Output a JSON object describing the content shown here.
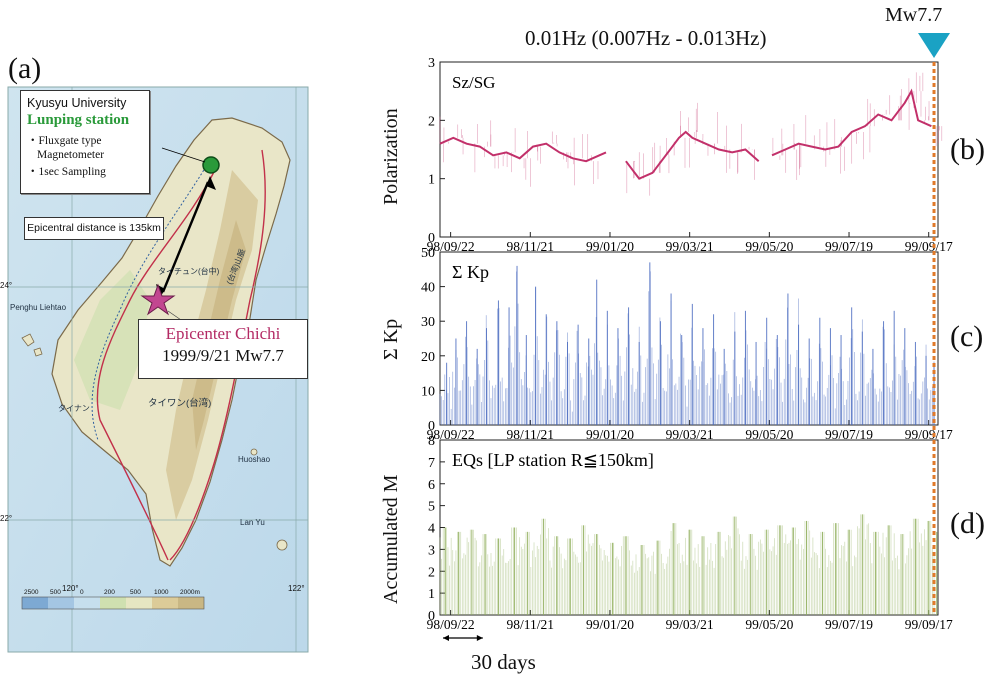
{
  "figure": {
    "panel_labels": [
      "(a)",
      "(b)",
      "(c)",
      "(d)"
    ],
    "top_title": "0.01Hz (0.007Hz - 0.013Hz)",
    "event_marker": "Mw7.7",
    "scale_bar": "30 days",
    "accent_colors": {
      "polarization": "#c2306a",
      "kp": "#4a6bc0",
      "eq": "#8fae5a",
      "event_line": "#e07a2a",
      "triangle": "#1aa2c4"
    }
  },
  "map": {
    "station_box": {
      "org": "Kyusyu University",
      "station": "Lunping station",
      "bullet1": "・Fluxgate type",
      "bullet1b": "Magnetometer",
      "bullet2": "・1sec Sampling"
    },
    "distance_note": "Epicentral distance is 135km",
    "epicenter": {
      "name": "Epicenter Chichi",
      "event": "1999/9/21 Mw7.7"
    },
    "lat_labels": [
      "24°",
      "22°"
    ],
    "lon_labels": [
      "120°",
      "122°"
    ],
    "place_names": [
      "タイワン(台湾)",
      "Penghu Liehtao",
      "タイナン",
      "タイチュン(台中)",
      "Lan Yu",
      "Huoshao",
      "(台湾)山脈"
    ],
    "legend_values": [
      "2500",
      "500",
      "0",
      "200",
      "500",
      "1000",
      "2000m"
    ]
  },
  "chart_data": [
    {
      "type": "line",
      "panel": "(b)",
      "ylabel": "Polarization",
      "annotation": "Sz/SG",
      "ylim": [
        0,
        3
      ],
      "yticks": [
        0,
        1,
        2,
        3
      ],
      "xticklabels": [
        "98/09/22",
        "98/11/21",
        "99/01/20",
        "99/03/21",
        "99/05/20",
        "99/07/19",
        "99/09/17"
      ],
      "xrange_days": [
        0,
        375
      ],
      "series": [
        {
          "values": [
            [
              0,
              1.6
            ],
            [
              10,
              1.7
            ],
            [
              20,
              1.6
            ],
            [
              30,
              1.55
            ],
            [
              40,
              1.4
            ],
            [
              50,
              1.45
            ],
            [
              60,
              1.35
            ],
            [
              70,
              1.55
            ],
            [
              80,
              1.6
            ],
            [
              90,
              1.45
            ],
            [
              100,
              1.35
            ],
            [
              110,
              1.3
            ],
            [
              120,
              1.4
            ],
            [
              125,
              1.45
            ],
            [
              140,
              1.3
            ],
            [
              150,
              1.0
            ],
            [
              160,
              1.1
            ],
            [
              170,
              1.4
            ],
            [
              180,
              1.7
            ],
            [
              185,
              1.8
            ],
            [
              190,
              1.7
            ],
            [
              200,
              1.6
            ],
            [
              210,
              1.5
            ],
            [
              220,
              1.45
            ],
            [
              230,
              1.5
            ],
            [
              240,
              1.3
            ],
            [
              250,
              1.4
            ],
            [
              260,
              1.5
            ],
            [
              270,
              1.6
            ],
            [
              280,
              1.55
            ],
            [
              290,
              1.5
            ],
            [
              300,
              1.55
            ],
            [
              310,
              1.8
            ],
            [
              320,
              1.9
            ],
            [
              330,
              2.1
            ],
            [
              340,
              2.0
            ],
            [
              350,
              2.3
            ],
            [
              355,
              2.5
            ],
            [
              360,
              2.0
            ],
            [
              370,
              1.9
            ]
          ]
        }
      ]
    },
    {
      "type": "bar",
      "panel": "(c)",
      "ylabel": "Σ Kp",
      "annotation": "Σ Kp",
      "ylim": [
        0,
        50
      ],
      "yticks": [
        0,
        10,
        20,
        30,
        40,
        50
      ],
      "xticklabels": [
        "98/09/22",
        "98/11/21",
        "99/01/20",
        "99/03/21",
        "99/05/20",
        "99/07/19",
        "99/09/17"
      ],
      "xrange_days": [
        0,
        375
      ],
      "series": [
        {
          "peaks": [
            [
              5,
              18
            ],
            [
              12,
              25
            ],
            [
              20,
              30
            ],
            [
              28,
              22
            ],
            [
              35,
              28
            ],
            [
              44,
              36
            ],
            [
              52,
              34
            ],
            [
              58,
              46
            ],
            [
              65,
              26
            ],
            [
              72,
              40
            ],
            [
              80,
              32
            ],
            [
              88,
              30
            ],
            [
              96,
              24
            ],
            [
              104,
              29
            ],
            [
              112,
              25
            ],
            [
              118,
              42
            ],
            [
              126,
              33
            ],
            [
              134,
              28
            ],
            [
              142,
              34
            ],
            [
              150,
              24
            ],
            [
              158,
              47
            ],
            [
              166,
              30
            ],
            [
              174,
              38
            ],
            [
              182,
              26
            ],
            [
              190,
              35
            ],
            [
              198,
              28
            ],
            [
              206,
              32
            ],
            [
              214,
              22
            ],
            [
              222,
              27
            ],
            [
              230,
              33
            ],
            [
              238,
              24
            ],
            [
              246,
              31
            ],
            [
              254,
              26
            ],
            [
              262,
              38
            ],
            [
              270,
              29
            ],
            [
              278,
              25
            ],
            [
              286,
              31
            ],
            [
              294,
              28
            ],
            [
              302,
              26
            ],
            [
              310,
              34
            ],
            [
              318,
              27
            ],
            [
              326,
              22
            ],
            [
              334,
              30
            ],
            [
              342,
              33
            ],
            [
              350,
              28
            ],
            [
              358,
              24
            ],
            [
              366,
              20
            ],
            [
              372,
              18
            ]
          ]
        }
      ]
    },
    {
      "type": "bar",
      "panel": "(d)",
      "ylabel": "Accumulated M",
      "annotation": "EQs [LP station  R≦150km]",
      "ylim": [
        0,
        8
      ],
      "yticks": [
        0,
        1,
        2,
        3,
        4,
        5,
        6,
        7,
        8
      ],
      "xticklabels": [
        "98/09/22",
        "98/11/21",
        "99/01/20",
        "99/03/21",
        "99/05/20",
        "99/07/19",
        "99/09/17"
      ],
      "xrange_days": [
        0,
        375
      ],
      "series": [
        {
          "peaks": [
            [
              4,
              4.0
            ],
            [
              14,
              3.8
            ],
            [
              24,
              3.9
            ],
            [
              34,
              3.7
            ],
            [
              44,
              3.5
            ],
            [
              56,
              4.0
            ],
            [
              66,
              3.8
            ],
            [
              78,
              4.4
            ],
            [
              88,
              3.6
            ],
            [
              98,
              3.5
            ],
            [
              108,
              4.1
            ],
            [
              118,
              3.7
            ],
            [
              130,
              3.3
            ],
            [
              140,
              3.6
            ],
            [
              152,
              3.2
            ],
            [
              164,
              3.4
            ],
            [
              176,
              4.2
            ],
            [
              188,
              3.9
            ],
            [
              198,
              3.6
            ],
            [
              210,
              3.8
            ],
            [
              222,
              4.5
            ],
            [
              234,
              3.7
            ],
            [
              246,
              3.9
            ],
            [
              256,
              4.1
            ],
            [
              266,
              4.0
            ],
            [
              276,
              4.3
            ],
            [
              288,
              3.8
            ],
            [
              298,
              4.2
            ],
            [
              308,
              3.9
            ],
            [
              318,
              4.6
            ],
            [
              328,
              3.8
            ],
            [
              338,
              4.1
            ],
            [
              348,
              3.7
            ],
            [
              358,
              4.4
            ],
            [
              368,
              4.3
            ],
            [
              374,
              3.8
            ]
          ]
        }
      ]
    }
  ]
}
